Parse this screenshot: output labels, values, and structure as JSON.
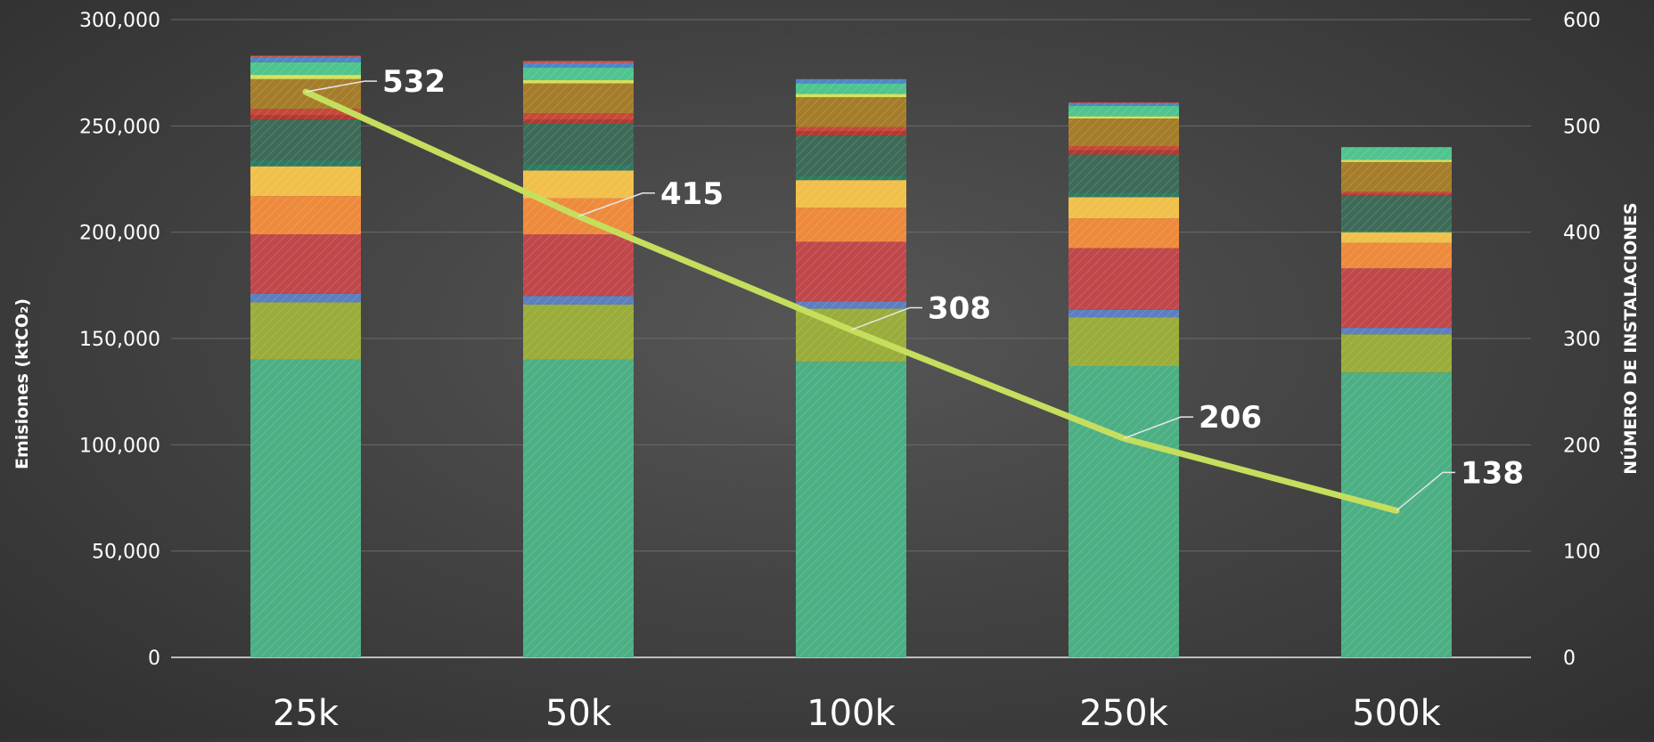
{
  "chart_data": {
    "type": "bar",
    "stacked": true,
    "categories": [
      "25k",
      "50k",
      "100k",
      "250k",
      "500k"
    ],
    "ylabel": "Emisiones (ktCO₂)",
    "y2label": "NÚMERO DE INSTALACIONES",
    "ylim": [
      0,
      300000
    ],
    "y2lim": [
      0,
      600
    ],
    "yticks": [
      "0",
      "50,000",
      "100,000",
      "150,000",
      "200,000",
      "250,000",
      "300,000"
    ],
    "y2ticks": [
      "0",
      "100",
      "200",
      "300",
      "400",
      "500",
      "600"
    ],
    "grid": true,
    "legend": "none",
    "series": [
      {
        "color": "#4caf84",
        "values": [
          140000,
          140000,
          139000,
          137000,
          134000
        ]
      },
      {
        "color": "#9aac3a",
        "values": [
          27000,
          26000,
          25000,
          23000,
          18000
        ]
      },
      {
        "color": "#5b7fbf",
        "values": [
          4000,
          4000,
          3500,
          3500,
          3000
        ]
      },
      {
        "color": "#c0474a",
        "values": [
          28000,
          29000,
          28000,
          29000,
          28000
        ]
      },
      {
        "color": "#ee8a3c",
        "values": [
          18000,
          17000,
          16000,
          14000,
          12000
        ]
      },
      {
        "color": "#f0c04a",
        "values": [
          14000,
          13000,
          13000,
          10000,
          5000
        ]
      },
      {
        "color": "#2f7a60",
        "values": [
          3000,
          3000,
          2000,
          2000,
          1000
        ]
      },
      {
        "color": "#3d6b58",
        "values": [
          19000,
          19000,
          19000,
          18000,
          16000
        ]
      },
      {
        "color": "#b03a30",
        "values": [
          2000,
          2000,
          2000,
          2000,
          1000
        ]
      },
      {
        "color": "#c6483a",
        "values": [
          3000,
          3000,
          2000,
          2000,
          1000
        ]
      },
      {
        "color": "#a57d2a",
        "values": [
          14000,
          14000,
          14000,
          13000,
          14000
        ]
      },
      {
        "color": "#d9e05a",
        "values": [
          2000,
          1500,
          1500,
          1000,
          1000
        ]
      },
      {
        "color": "#4fc48f",
        "values": [
          6000,
          6000,
          5000,
          5000,
          6000
        ]
      },
      {
        "color": "#4e86c6",
        "values": [
          2000,
          2000,
          2000,
          1000,
          0
        ]
      },
      {
        "color": "#c25a5a",
        "values": [
          1000,
          1000,
          0,
          500,
          0
        ]
      }
    ],
    "line": {
      "color": "#c5de5d",
      "axis": "right",
      "values": [
        532,
        415,
        308,
        206,
        138
      ],
      "labels": [
        "532",
        "415",
        "308",
        "206",
        "138"
      ]
    }
  }
}
